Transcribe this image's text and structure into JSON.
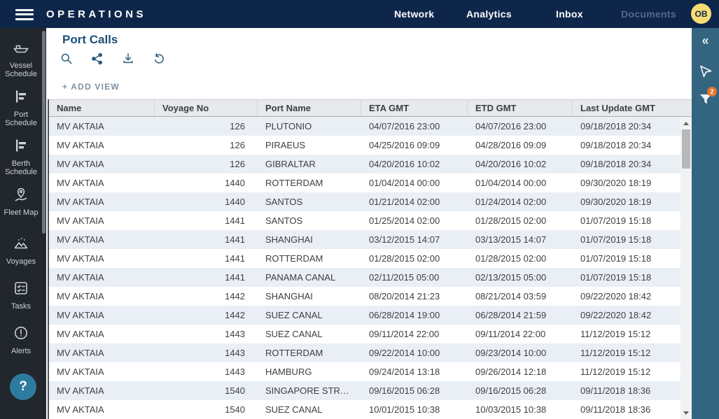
{
  "topbar": {
    "brand": "OPERATIONS",
    "nav_items": [
      {
        "label": "Network",
        "disabled": false
      },
      {
        "label": "Analytics",
        "disabled": false
      },
      {
        "label": "Inbox",
        "disabled": false
      },
      {
        "label": "Documents",
        "disabled": true
      }
    ],
    "avatar_initials": "OB"
  },
  "sidebar": {
    "items": [
      {
        "label": "Vessel Schedule"
      },
      {
        "label": "Port Schedule"
      },
      {
        "label": "Berth Schedule"
      },
      {
        "label": "Fleet Map"
      },
      {
        "label": "Voyages"
      },
      {
        "label": "Tasks"
      },
      {
        "label": "Alerts"
      }
    ],
    "help_label": "?"
  },
  "main": {
    "title": "Port Calls",
    "add_view_label": "+ ADD VIEW",
    "toolbar_icons": [
      "search-icon",
      "share-icon",
      "download-icon",
      "undo-icon"
    ]
  },
  "table": {
    "columns": [
      "Name",
      "Voyage No",
      "Port Name",
      "ETA GMT",
      "ETD GMT",
      "Last Update GMT"
    ],
    "rows": [
      [
        "MV AKTAIA",
        "126",
        "PLUTONIO",
        "04/07/2016 23:00",
        "04/07/2016 23:00",
        "09/18/2018 20:34"
      ],
      [
        "MV AKTAIA",
        "126",
        "PIRAEUS",
        "04/25/2016 09:09",
        "04/28/2016 09:09",
        "09/18/2018 20:34"
      ],
      [
        "MV AKTAIA",
        "126",
        "GIBRALTAR",
        "04/20/2016 10:02",
        "04/20/2016 10:02",
        "09/18/2018 20:34"
      ],
      [
        "MV AKTAIA",
        "1440",
        "ROTTERDAM",
        "01/04/2014 00:00",
        "01/04/2014 00:00",
        "09/30/2020 18:19"
      ],
      [
        "MV AKTAIA",
        "1440",
        "SANTOS",
        "01/21/2014 02:00",
        "01/24/2014 02:00",
        "09/30/2020 18:19"
      ],
      [
        "MV AKTAIA",
        "1441",
        "SANTOS",
        "01/25/2014 02:00",
        "01/28/2015 02:00",
        "01/07/2019 15:18"
      ],
      [
        "MV AKTAIA",
        "1441",
        "SHANGHAI",
        "03/12/2015 14:07",
        "03/13/2015 14:07",
        "01/07/2019 15:18"
      ],
      [
        "MV AKTAIA",
        "1441",
        "ROTTERDAM",
        "01/28/2015 02:00",
        "01/28/2015 02:00",
        "01/07/2019 15:18"
      ],
      [
        "MV AKTAIA",
        "1441",
        "PANAMA CANAL",
        "02/11/2015 05:00",
        "02/13/2015 05:00",
        "01/07/2019 15:18"
      ],
      [
        "MV AKTAIA",
        "1442",
        "SHANGHAI",
        "08/20/2014 21:23",
        "08/21/2014 03:59",
        "09/22/2020 18:42"
      ],
      [
        "MV AKTAIA",
        "1442",
        "SUEZ CANAL",
        "06/28/2014 19:00",
        "06/28/2014 21:59",
        "09/22/2020 18:42"
      ],
      [
        "MV AKTAIA",
        "1443",
        "SUEZ CANAL",
        "09/11/2014 22:00",
        "09/11/2014 22:00",
        "11/12/2019 15:12"
      ],
      [
        "MV AKTAIA",
        "1443",
        "ROTTERDAM",
        "09/22/2014 10:00",
        "09/23/2014 10:00",
        "11/12/2019 15:12"
      ],
      [
        "MV AKTAIA",
        "1443",
        "HAMBURG",
        "09/24/2014 13:18",
        "09/26/2014 12:18",
        "11/12/2019 15:12"
      ],
      [
        "MV AKTAIA",
        "1540",
        "SINGAPORE STR…",
        "09/16/2015 06:28",
        "09/16/2015 06:28",
        "09/11/2018 18:36"
      ],
      [
        "MV AKTAIA",
        "1540",
        "SUEZ CANAL",
        "10/01/2015 10:38",
        "10/03/2015 10:38",
        "09/11/2018 18:36"
      ]
    ]
  },
  "right_rail": {
    "collapse_glyph": "«",
    "filter_badge_count": "2"
  },
  "colors": {
    "topbar_bg": "#0e2649",
    "sidebar_bg": "#21272d",
    "right_rail_bg": "#336480",
    "accent_teal": "#2b5d7e",
    "title_color": "#1c4f79",
    "row_alt_bg": "#e9eff4",
    "avatar_bg": "#f6dd73",
    "badge_orange": "#e2762d",
    "help_bg": "#2e7ba0"
  }
}
